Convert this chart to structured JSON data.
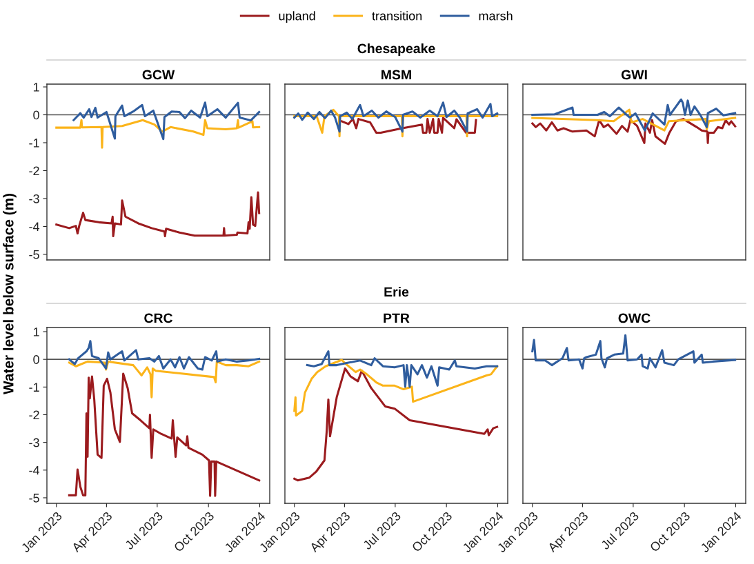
{
  "chart_data": [
    {
      "type": "line",
      "title": "GCW",
      "ylabel": "Water level below surface (m)",
      "legend": "top",
      "tick_labels": "y",
      "xlim": [
        "2022-12-15",
        "2024-01-19"
      ],
      "ylim": [
        -5.2,
        1.1
      ],
      "yticks": [
        1,
        0,
        -1,
        -2,
        -3,
        -4,
        -5
      ],
      "ref_lines": [
        {
          "axis": "y",
          "value": 0,
          "color": "#555555"
        }
      ],
      "series": [
        {
          "name": "upland",
          "color": "#9b1b1e",
          "x": [
            "2023-01-01",
            "2023-01-24",
            "2023-02-05",
            "2023-02-08",
            "2023-02-11",
            "2023-02-18",
            "2023-02-22",
            "2023-03-18",
            "2023-04-10",
            "2023-04-12",
            "2023-04-13",
            "2023-04-16",
            "2023-04-27",
            "2023-04-29",
            "2023-05-05",
            "2023-05-28",
            "2023-06-21",
            "2023-07-14",
            "2023-07-15",
            "2023-07-17",
            "2023-08-10",
            "2023-09-06",
            "2023-10-28",
            "2023-10-29",
            "2023-10-30",
            "2023-11-21",
            "2023-11-22",
            "2023-12-10",
            "2023-12-12",
            "2023-12-14",
            "2023-12-17",
            "2023-12-20",
            "2023-12-24",
            "2023-12-29",
            "2023-12-31"
          ],
          "values": [
            -3.93,
            -4.06,
            -3.98,
            -4.25,
            -3.98,
            -3.51,
            -3.77,
            -3.85,
            -3.89,
            -3.65,
            -4.35,
            -3.89,
            -3.93,
            -3.07,
            -3.65,
            -3.89,
            -4.06,
            -4.18,
            -4.35,
            -4.08,
            -4.22,
            -4.33,
            -4.33,
            -4.06,
            -4.33,
            -4.3,
            -4.22,
            -4.25,
            -3.85,
            -4.08,
            -2.95,
            -3.93,
            -3.98,
            -2.78,
            -3.52
          ]
        },
        {
          "name": "transition",
          "color": "#fbb41a",
          "x": [
            "2023-01-01",
            "2023-02-13",
            "2023-02-15",
            "2023-02-16",
            "2023-03-23",
            "2023-03-24",
            "2023-03-25",
            "2023-04-29",
            "2023-06-05",
            "2023-06-26",
            "2023-07-10",
            "2023-07-25",
            "2023-09-04",
            "2023-09-22",
            "2023-09-25",
            "2023-09-29",
            "2023-11-01",
            "2023-11-21",
            "2023-11-23",
            "2023-11-24",
            "2023-12-19",
            "2023-12-20",
            "2023-12-31"
          ],
          "values": [
            -0.46,
            -0.46,
            -0.19,
            -0.45,
            -0.44,
            -1.18,
            -0.44,
            -0.4,
            -0.19,
            -0.35,
            -0.6,
            -0.44,
            -0.6,
            -0.72,
            -0.19,
            -0.48,
            -0.52,
            -0.48,
            -0.19,
            -0.46,
            -0.23,
            -0.45,
            -0.44
          ]
        },
        {
          "name": "marsh",
          "color": "#2f5d9e",
          "x": [
            "2023-02-01",
            "2023-02-13",
            "2023-02-19",
            "2023-03-01",
            "2023-03-05",
            "2023-03-12",
            "2023-03-16",
            "2023-04-01",
            "2023-04-16",
            "2023-04-17",
            "2023-04-29",
            "2023-05-03",
            "2023-05-19",
            "2023-06-04",
            "2023-06-09",
            "2023-06-24",
            "2023-07-12",
            "2023-07-14",
            "2023-07-27",
            "2023-08-10",
            "2023-08-20",
            "2023-08-31",
            "2023-09-16",
            "2023-09-25",
            "2023-09-29",
            "2023-10-17",
            "2023-11-01",
            "2023-11-23",
            "2023-11-26",
            "2023-12-16",
            "2023-12-31"
          ],
          "values": [
            -0.19,
            0.06,
            -0.1,
            0.2,
            -0.08,
            0.25,
            -0.1,
            0.1,
            -0.85,
            -0.05,
            0.33,
            -0.05,
            0.12,
            0.35,
            -0.05,
            0.15,
            -0.87,
            -0.08,
            0.12,
            0.1,
            -0.12,
            0.15,
            -0.1,
            0.44,
            -0.05,
            0.2,
            -0.1,
            0.43,
            -0.1,
            -0.2,
            0.1
          ]
        }
      ]
    },
    {
      "type": "line",
      "subtitle": "Chesapeake",
      "title": "MSM",
      "tick_labels": false,
      "xlim": [
        "2022-12-15",
        "2024-01-19"
      ],
      "ylim": [
        -5.2,
        1.1
      ],
      "ref_lines": [
        {
          "axis": "y",
          "value": 0,
          "color": "#555555"
        }
      ],
      "series": [
        {
          "name": "upland",
          "color": "#9b1b1e",
          "x": [
            "2023-03-27",
            "2023-04-08",
            "2023-04-16",
            "2023-04-22",
            "2023-04-26",
            "2023-05-17",
            "2023-05-28",
            "2023-06-05",
            "2023-07-12",
            "2023-08-18",
            "2023-08-20",
            "2023-08-26",
            "2023-08-28",
            "2023-09-01",
            "2023-09-07",
            "2023-09-09",
            "2023-09-15",
            "2023-09-17",
            "2023-09-23",
            "2023-09-25",
            "2023-10-15",
            "2023-10-19",
            "2023-11-05",
            "2023-11-21",
            "2023-11-23"
          ],
          "values": [
            -0.23,
            -0.33,
            -0.15,
            -0.48,
            -0.15,
            -0.27,
            -0.64,
            -0.64,
            -0.49,
            -0.35,
            -0.64,
            -0.64,
            -0.15,
            -0.64,
            -0.15,
            -0.64,
            -0.64,
            -0.15,
            -0.64,
            -0.11,
            -0.48,
            -0.16,
            -0.64,
            -0.64,
            -0.19
          ]
        },
        {
          "name": "transition",
          "color": "#fbb41a",
          "x": [
            "2023-01-01",
            "2023-02-10",
            "2023-02-20",
            "2023-02-24",
            "2023-03-12",
            "2023-03-22",
            "2023-03-23",
            "2023-03-24",
            "2023-07-13",
            "2023-07-14",
            "2023-07-15",
            "2023-11-06",
            "2023-11-07",
            "2023-11-08",
            "2023-12-31"
          ],
          "values": [
            -0.05,
            -0.05,
            -0.64,
            -0.05,
            0.18,
            -0.05,
            -0.77,
            -0.05,
            -0.05,
            -0.77,
            -0.05,
            -0.05,
            -0.77,
            -0.05,
            -0.05
          ]
        },
        {
          "name": "marsh",
          "color": "#2f5d9e",
          "x": [
            "2023-01-01",
            "2023-01-08",
            "2023-01-15",
            "2023-01-25",
            "2023-02-05",
            "2023-02-15",
            "2023-02-25",
            "2023-03-08",
            "2023-03-15",
            "2023-03-23",
            "2023-03-24",
            "2023-04-05",
            "2023-04-15",
            "2023-04-29",
            "2023-05-05",
            "2023-05-20",
            "2023-06-01",
            "2023-06-15",
            "2023-07-01",
            "2023-07-14",
            "2023-07-15",
            "2023-08-01",
            "2023-08-15",
            "2023-09-01",
            "2023-09-15",
            "2023-09-25",
            "2023-10-01",
            "2023-10-15",
            "2023-10-25",
            "2023-11-07",
            "2023-11-08",
            "2023-11-25",
            "2023-12-05",
            "2023-12-19",
            "2023-12-22",
            "2023-12-31"
          ],
          "values": [
            -0.1,
            0.05,
            -0.18,
            0.08,
            -0.15,
            0.1,
            -0.12,
            0.15,
            -0.1,
            -0.6,
            -0.05,
            0.08,
            -0.15,
            0.35,
            -0.05,
            0.15,
            -0.1,
            0.12,
            -0.08,
            -0.6,
            0.0,
            0.12,
            -0.1,
            0.15,
            -0.05,
            0.44,
            -0.08,
            0.15,
            -0.1,
            -0.6,
            0.05,
            0.2,
            -0.1,
            0.39,
            -0.05,
            0.05
          ]
        }
      ]
    },
    {
      "type": "line",
      "title": "GWI",
      "tick_labels": false,
      "xlim": [
        "2022-12-15",
        "2024-01-19"
      ],
      "ylim": [
        -5.2,
        1.1
      ],
      "ref_lines": [
        {
          "axis": "y",
          "value": 0,
          "color": "#555555"
        }
      ],
      "series": [
        {
          "name": "upland",
          "color": "#9b1b1e",
          "x": [
            "2023-01-01",
            "2023-01-07",
            "2023-01-15",
            "2023-01-26",
            "2023-02-05",
            "2023-02-15",
            "2023-02-26",
            "2023-03-14",
            "2023-04-08",
            "2023-04-23",
            "2023-05-01",
            "2023-05-09",
            "2023-05-17",
            "2023-06-01",
            "2023-06-11",
            "2023-06-21",
            "2023-06-26",
            "2023-07-08",
            "2023-07-21",
            "2023-07-23",
            "2023-07-31",
            "2023-08-04",
            "2023-08-10",
            "2023-08-27",
            "2023-09-04",
            "2023-09-16",
            "2023-09-29",
            "2023-10-23",
            "2023-11-01",
            "2023-11-11",
            "2023-11-12",
            "2023-11-13",
            "2023-11-23",
            "2023-11-30",
            "2023-12-08",
            "2023-12-14",
            "2023-12-20",
            "2023-12-24",
            "2023-12-31"
          ],
          "values": [
            -0.31,
            -0.44,
            -0.31,
            -0.56,
            -0.27,
            -0.56,
            -0.48,
            -0.6,
            -0.56,
            -0.77,
            -0.19,
            -0.44,
            -0.35,
            -0.68,
            -0.4,
            -0.6,
            -0.19,
            -0.4,
            -1.01,
            -0.31,
            -0.64,
            -0.19,
            -0.77,
            -1.04,
            -0.64,
            -0.23,
            -0.15,
            -0.44,
            -0.56,
            -0.6,
            -1.01,
            -0.64,
            -0.64,
            -0.44,
            -0.48,
            -0.19,
            -0.35,
            -0.23,
            -0.41
          ]
        },
        {
          "name": "transition",
          "color": "#fbb41a",
          "x": [
            "2023-01-01",
            "2023-04-28",
            "2023-05-27",
            "2023-06-24",
            "2023-06-28",
            "2023-07-18",
            "2023-08-26",
            "2023-09-03",
            "2023-11-08",
            "2023-11-10",
            "2023-11-14",
            "2023-12-31"
          ],
          "values": [
            -0.11,
            -0.19,
            -0.23,
            0.18,
            -0.27,
            -0.15,
            -0.56,
            -0.23,
            -0.15,
            -0.52,
            -0.23,
            -0.11
          ]
        },
        {
          "name": "marsh",
          "color": "#2f5d9e",
          "x": [
            "2023-01-01",
            "2023-02-10",
            "2023-03-14",
            "2023-03-16",
            "2023-04-28",
            "2023-05-10",
            "2023-05-20",
            "2023-06-05",
            "2023-06-25",
            "2023-07-05",
            "2023-07-22",
            "2023-08-05",
            "2023-08-26",
            "2023-09-01",
            "2023-09-05",
            "2023-09-25",
            "2023-09-28",
            "2023-10-02",
            "2023-10-07",
            "2023-10-12",
            "2023-10-19",
            "2023-10-30",
            "2023-11-10",
            "2023-11-12",
            "2023-11-27",
            "2023-12-10",
            "2023-12-31"
          ],
          "values": [
            0.0,
            0.02,
            0.26,
            0.0,
            0.0,
            0.1,
            -0.05,
            0.26,
            -0.1,
            0.05,
            -0.56,
            0.05,
            -0.35,
            0.35,
            0.0,
            0.55,
            0.43,
            0.0,
            0.51,
            0.0,
            0.3,
            -0.02,
            -0.44,
            0.06,
            0.22,
            -0.02,
            0.06
          ]
        }
      ]
    },
    {
      "type": "line",
      "title": "CRC",
      "xlim": [
        "2022-12-15",
        "2024-01-19"
      ],
      "xticks": [
        {
          "value": "2023-01-01",
          "label": "Jan 2023"
        },
        {
          "value": "2023-04-01",
          "label": "Apr 2023"
        },
        {
          "value": "2023-07-01",
          "label": "Jul 2023"
        },
        {
          "value": "2023-10-01",
          "label": "Oct 2023"
        },
        {
          "value": "2024-01-01",
          "label": "Jan 2024"
        }
      ],
      "ylim": [
        -5.2,
        1.15
      ],
      "yticks": [
        1,
        0,
        -1,
        -2,
        -3,
        -4,
        -5
      ],
      "ref_lines": [
        {
          "axis": "y",
          "value": 0,
          "color": "#555555"
        }
      ],
      "series": [
        {
          "name": "upland",
          "color": "#9b1b1e",
          "x": [
            "2023-01-24",
            "2023-02-05",
            "2023-02-08",
            "2023-02-13",
            "2023-02-18",
            "2023-02-22",
            "2023-02-24",
            "2023-02-26",
            "2023-02-28",
            "2023-03-02",
            "2023-03-06",
            "2023-03-10",
            "2023-03-16",
            "2023-03-23",
            "2023-03-27",
            "2023-04-02",
            "2023-04-08",
            "2023-04-16",
            "2023-04-25",
            "2023-05-01",
            "2023-05-09",
            "2023-05-17",
            "2023-06-01",
            "2023-06-17",
            "2023-06-18",
            "2023-06-21",
            "2023-06-24",
            "2023-07-08",
            "2023-07-27",
            "2023-07-29",
            "2023-08-03",
            "2023-08-06",
            "2023-08-22",
            "2023-08-24",
            "2023-08-26",
            "2023-09-20",
            "2023-10-02",
            "2023-10-04",
            "2023-10-06",
            "2023-10-12",
            "2023-10-13",
            "2023-10-15",
            "2023-12-31"
          ],
          "values": [
            -4.91,
            -4.91,
            -3.98,
            -4.6,
            -4.91,
            -4.91,
            -1.95,
            -3.52,
            -0.66,
            -1.41,
            -0.62,
            -1.45,
            -3.44,
            -3.56,
            -0.95,
            -0.7,
            -1.2,
            -2.53,
            -2.98,
            -0.52,
            -1.04,
            -1.95,
            -2.2,
            -2.49,
            -2.0,
            -3.56,
            -2.53,
            -2.69,
            -2.86,
            -2.2,
            -3.52,
            -2.82,
            -3.11,
            -2.78,
            -3.19,
            -3.44,
            -3.65,
            -4.93,
            -3.69,
            -3.69,
            -4.93,
            -3.69,
            -4.37
          ]
        },
        {
          "name": "transition",
          "color": "#fbb41a",
          "x": [
            "2023-01-24",
            "2023-02-05",
            "2023-02-26",
            "2023-03-29",
            "2023-03-31",
            "2023-04-04",
            "2023-05-19",
            "2023-06-03",
            "2023-06-13",
            "2023-06-19",
            "2023-06-21",
            "2023-06-23",
            "2023-06-28",
            "2023-10-11",
            "2023-10-14",
            "2023-10-16",
            "2023-11-01",
            "2023-11-21",
            "2023-12-12",
            "2023-12-31"
          ],
          "values": [
            -0.12,
            -0.25,
            -0.08,
            -0.12,
            -0.37,
            -0.08,
            -0.21,
            -0.58,
            -0.29,
            -0.54,
            -1.37,
            -0.33,
            -0.41,
            -0.64,
            -0.83,
            -0.08,
            -0.21,
            -0.21,
            -0.25,
            -0.08
          ]
        },
        {
          "name": "marsh",
          "color": "#2f5d9e",
          "x": [
            "2023-01-24",
            "2023-02-03",
            "2023-02-09",
            "2023-02-24",
            "2023-02-28",
            "2023-03-03",
            "2023-03-06",
            "2023-03-18",
            "2023-03-31",
            "2023-04-04",
            "2023-04-08",
            "2023-04-29",
            "2023-05-03",
            "2023-05-24",
            "2023-05-28",
            "2023-06-17",
            "2023-06-26",
            "2023-07-04",
            "2023-07-12",
            "2023-07-25",
            "2023-08-02",
            "2023-08-10",
            "2023-08-18",
            "2023-08-27",
            "2023-09-12",
            "2023-09-20",
            "2023-09-25",
            "2023-10-07",
            "2023-10-15",
            "2023-10-17",
            "2023-11-01",
            "2023-11-21",
            "2023-12-12",
            "2023-12-31"
          ],
          "values": [
            0.0,
            -0.17,
            0.04,
            0.29,
            0.41,
            0.66,
            0.12,
            0.04,
            -0.33,
            0.25,
            0.0,
            0.29,
            -0.04,
            0.33,
            0.0,
            0.04,
            -0.08,
            0.12,
            -0.33,
            0.0,
            -0.29,
            0.08,
            -0.33,
            0.08,
            -0.33,
            -0.37,
            0.08,
            -0.04,
            0.29,
            -0.08,
            0.0,
            -0.08,
            -0.04,
            0.02
          ]
        }
      ]
    },
    {
      "type": "line",
      "subtitle": "Erie",
      "title": "PTR",
      "tick_labels": "x",
      "xlim": [
        "2022-12-15",
        "2024-01-19"
      ],
      "xticks": [
        {
          "value": "2023-01-01",
          "label": "Jan 2023"
        },
        {
          "value": "2023-04-01",
          "label": "Apr 2023"
        },
        {
          "value": "2023-07-01",
          "label": "Jul 2023"
        },
        {
          "value": "2023-10-01",
          "label": "Oct 2023"
        },
        {
          "value": "2024-01-01",
          "label": "Jan 2024"
        }
      ],
      "ylim": [
        -5.2,
        1.15
      ],
      "ref_lines": [
        {
          "axis": "y",
          "value": 0,
          "color": "#555555"
        }
      ],
      "series": [
        {
          "name": "upland",
          "color": "#9b1b1e",
          "x": [
            "2023-01-01",
            "2023-01-07",
            "2023-01-28",
            "2023-02-09",
            "2023-02-24",
            "2023-02-28",
            "2023-03-03",
            "2023-03-06",
            "2023-03-18",
            "2023-04-02",
            "2023-04-12",
            "2023-04-25",
            "2023-05-02",
            "2023-05-19",
            "2023-06-13",
            "2023-06-30",
            "2023-07-27",
            "2023-12-08",
            "2023-12-14",
            "2023-12-16",
            "2023-12-24",
            "2023-12-31"
          ],
          "values": [
            -4.31,
            -4.37,
            -4.27,
            -4.06,
            -3.65,
            -2.61,
            -1.45,
            -2.78,
            -1.37,
            -0.33,
            -0.62,
            -0.79,
            -0.41,
            -1.04,
            -1.7,
            -1.78,
            -2.2,
            -2.69,
            -2.53,
            -2.74,
            -2.49,
            -2.44
          ]
        },
        {
          "name": "transition",
          "color": "#fbb41a",
          "x": [
            "2023-01-01",
            "2023-01-03",
            "2023-01-04",
            "2023-01-15",
            "2023-01-20",
            "2023-02-01",
            "2023-02-11",
            "2023-02-26",
            "2023-03-27",
            "2023-04-02",
            "2023-04-21",
            "2023-04-29",
            "2023-05-11",
            "2023-05-28",
            "2023-06-09",
            "2023-06-30",
            "2023-07-16",
            "2023-07-31",
            "2023-08-02",
            "2023-12-12",
            "2023-12-20",
            "2023-12-31"
          ],
          "values": [
            -1.86,
            -1.37,
            -2.03,
            -1.86,
            -1.2,
            -0.7,
            -0.46,
            -0.25,
            -0.02,
            -0.14,
            -0.46,
            -0.37,
            -0.54,
            -0.83,
            -0.95,
            -0.95,
            -1.08,
            -0.99,
            -1.53,
            -0.58,
            -0.54,
            -0.25
          ]
        },
        {
          "name": "marsh",
          "color": "#2f5d9e",
          "x": [
            "2023-01-24",
            "2023-02-05",
            "2023-02-19",
            "2023-03-03",
            "2023-03-05",
            "2023-03-18",
            "2023-04-08",
            "2023-04-29",
            "2023-05-19",
            "2023-05-25",
            "2023-06-09",
            "2023-06-30",
            "2023-07-16",
            "2023-07-19",
            "2023-07-22",
            "2023-07-27",
            "2023-07-30",
            "2023-08-10",
            "2023-08-18",
            "2023-08-27",
            "2023-09-04",
            "2023-09-15",
            "2023-09-18",
            "2023-10-06",
            "2023-10-16",
            "2023-10-19",
            "2023-11-21",
            "2023-12-12",
            "2023-12-31"
          ],
          "values": [
            -0.21,
            -0.25,
            -0.17,
            0.29,
            -0.21,
            -0.21,
            -0.12,
            -0.04,
            -0.21,
            0.04,
            -0.25,
            -0.29,
            -0.21,
            -0.99,
            -0.21,
            -0.99,
            -0.21,
            -0.54,
            -0.21,
            -0.66,
            -0.25,
            -0.95,
            -0.29,
            -0.37,
            -0.04,
            -0.25,
            -0.33,
            -0.25,
            -0.25
          ]
        }
      ]
    },
    {
      "type": "line",
      "title": "OWC",
      "tick_labels": "x",
      "xlim": [
        "2022-12-15",
        "2024-01-19"
      ],
      "xticks": [
        {
          "value": "2023-01-01",
          "label": "Jan 2023"
        },
        {
          "value": "2023-04-01",
          "label": "Apr 2023"
        },
        {
          "value": "2023-07-01",
          "label": "Jul 2023"
        },
        {
          "value": "2023-10-01",
          "label": "Oct 2023"
        },
        {
          "value": "2024-01-01",
          "label": "Jan 2024"
        }
      ],
      "ylim": [
        -5.2,
        1.15
      ],
      "ref_lines": [
        {
          "axis": "y",
          "value": 0,
          "color": "#555555"
        }
      ],
      "series": [
        {
          "name": "marsh",
          "color": "#2f5d9e",
          "x": [
            "2023-01-01",
            "2023-01-04",
            "2023-01-07",
            "2023-01-24",
            "2023-02-05",
            "2023-02-24",
            "2023-03-04",
            "2023-03-07",
            "2023-03-26",
            "2023-04-01",
            "2023-04-04",
            "2023-04-08",
            "2023-04-25",
            "2023-05-03",
            "2023-05-05",
            "2023-05-11",
            "2023-05-15",
            "2023-05-28",
            "2023-06-13",
            "2023-06-17",
            "2023-06-21",
            "2023-07-08",
            "2023-07-16",
            "2023-07-18",
            "2023-07-27",
            "2023-07-31",
            "2023-08-10",
            "2023-08-22",
            "2023-08-26",
            "2023-09-12",
            "2023-09-20",
            "2023-10-17",
            "2023-10-19",
            "2023-11-01",
            "2023-11-03",
            "2023-11-21",
            "2023-12-31"
          ],
          "values": [
            0.29,
            0.7,
            -0.04,
            -0.04,
            -0.21,
            0.04,
            0.41,
            -0.04,
            0.0,
            -0.33,
            0.04,
            0.08,
            0.17,
            0.66,
            0.04,
            -0.29,
            0.04,
            0.17,
            0.21,
            0.87,
            -0.04,
            0.0,
            0.17,
            -0.25,
            -0.33,
            0.04,
            -0.29,
            0.33,
            -0.12,
            -0.21,
            0.0,
            0.29,
            -0.12,
            0.17,
            -0.12,
            -0.08,
            -0.02
          ]
        }
      ]
    }
  ]
}
